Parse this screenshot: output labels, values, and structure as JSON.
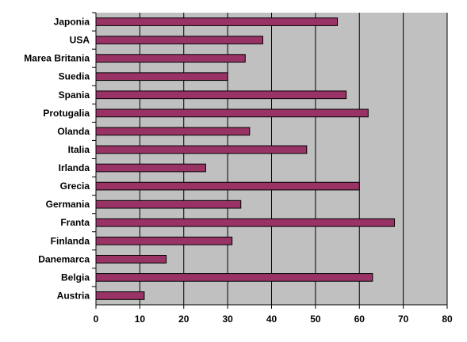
{
  "chart_data": {
    "type": "bar",
    "orientation": "horizontal",
    "categories": [
      "Japonia",
      "USA",
      "Marea Britania",
      "Suedia",
      "Spania",
      "Protugalia",
      "Olanda",
      "Italia",
      "Irlanda",
      "Grecia",
      "Germania",
      "Franta",
      "Finlanda",
      "Danemarca",
      "Belgia",
      "Austria"
    ],
    "values": [
      55,
      38,
      34,
      30,
      57,
      62,
      35,
      48,
      25,
      60,
      33,
      68,
      31,
      16,
      63,
      11
    ],
    "xlim": [
      0,
      80
    ],
    "x_ticks": [
      "0",
      "10",
      "20",
      "30",
      "40",
      "50",
      "60",
      "70",
      "80"
    ],
    "title": "",
    "xlabel": "",
    "ylabel": "",
    "grid": true,
    "legend": "none",
    "colors": {
      "bar": "#993366",
      "plot_background": "#c0c0c0",
      "gridline": "#000000"
    }
  }
}
